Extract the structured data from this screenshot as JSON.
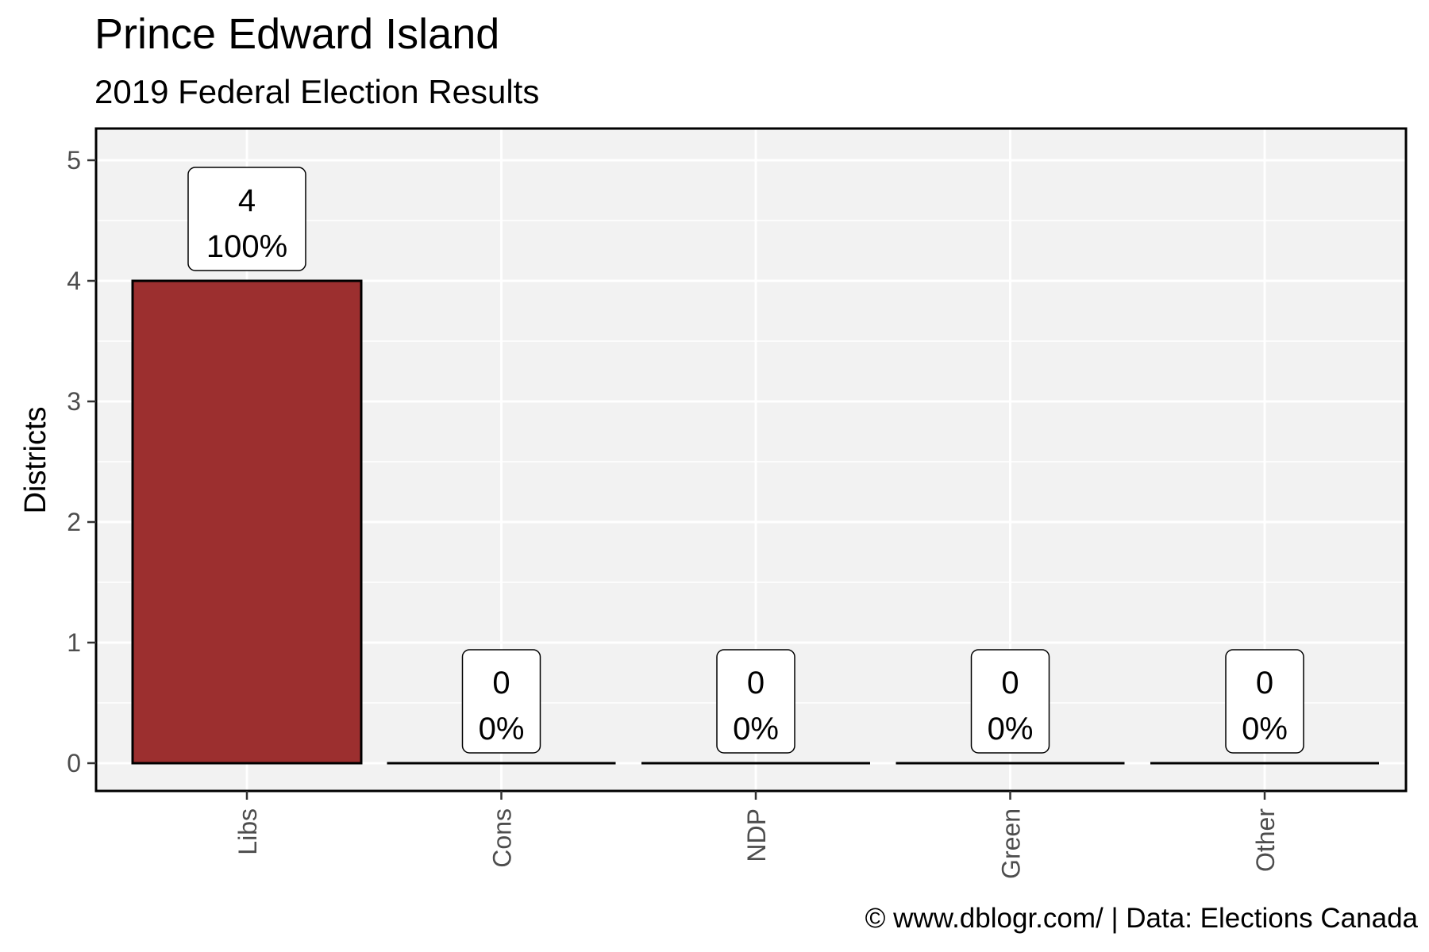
{
  "title": "Prince Edward Island",
  "subtitle": "2019 Federal Election Results",
  "caption": "© www.dblogr.com/  |  Data: Elections Canada",
  "chart_data": {
    "type": "bar",
    "title": "Prince Edward Island",
    "subtitle": "2019 Federal Election Results",
    "xlabel": "",
    "ylabel": "Districts",
    "categories": [
      "Libs",
      "Cons",
      "NDP",
      "Green",
      "Other"
    ],
    "values": [
      4,
      0,
      0,
      0,
      0
    ],
    "percent_labels": [
      "100%",
      "0%",
      "0%",
      "0%",
      "0%"
    ],
    "colors": [
      "#9c2f2f",
      "#9c2f2f",
      "#9c2f2f",
      "#9c2f2f",
      "#9c2f2f"
    ],
    "ylim": [
      0,
      5.25
    ],
    "yticks": [
      0,
      1,
      2,
      3,
      4,
      5
    ],
    "grid": true,
    "panel_background": "#f2f2f2"
  }
}
